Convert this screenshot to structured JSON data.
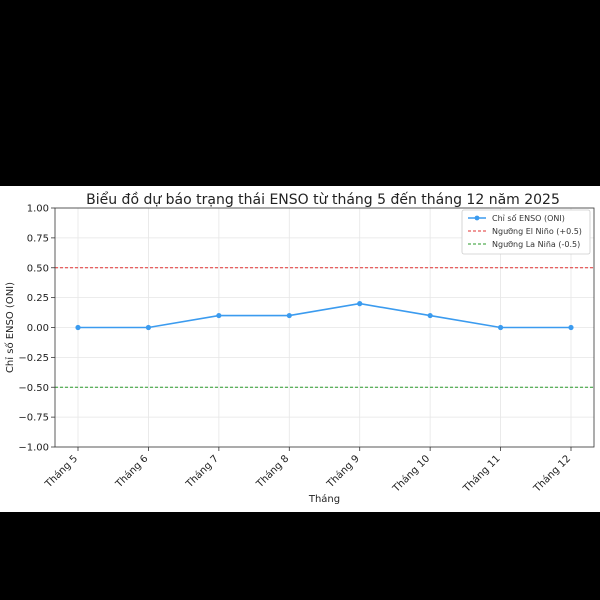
{
  "chart_data": {
    "type": "line",
    "title": "Biểu đồ dự báo trạng thái ENSO từ tháng 5 đến tháng 12 năm 2025",
    "xlabel": "Tháng",
    "ylabel": "Chỉ số ENSO (ONI)",
    "categories": [
      "Tháng 5",
      "Tháng 6",
      "Tháng 7",
      "Tháng 8",
      "Tháng 9",
      "Tháng 10",
      "Tháng 11",
      "Tháng 12"
    ],
    "series": [
      {
        "name": "Chỉ số ENSO (ONI)",
        "values": [
          0.0,
          0.0,
          0.1,
          0.1,
          0.2,
          0.1,
          0.0,
          0.0
        ],
        "color": "#3b9bef"
      }
    ],
    "thresholds": [
      {
        "name": "Ngưỡng El Niño (+0.5)",
        "value": 0.5,
        "color": "#e03030"
      },
      {
        "name": "Ngưỡng La Niña (-0.5)",
        "value": -0.5,
        "color": "#2a9a2a"
      }
    ],
    "ylim": [
      -1.0,
      1.0
    ],
    "yticks": [
      "1.00",
      "0.75",
      "0.50",
      "0.25",
      "0.00",
      "−0.25",
      "−0.50",
      "−0.75",
      "−1.00"
    ],
    "ytick_values": [
      1.0,
      0.75,
      0.5,
      0.25,
      0.0,
      -0.25,
      -0.5,
      -0.75,
      -1.0
    ],
    "grid": true,
    "legend_position": "top-right"
  }
}
